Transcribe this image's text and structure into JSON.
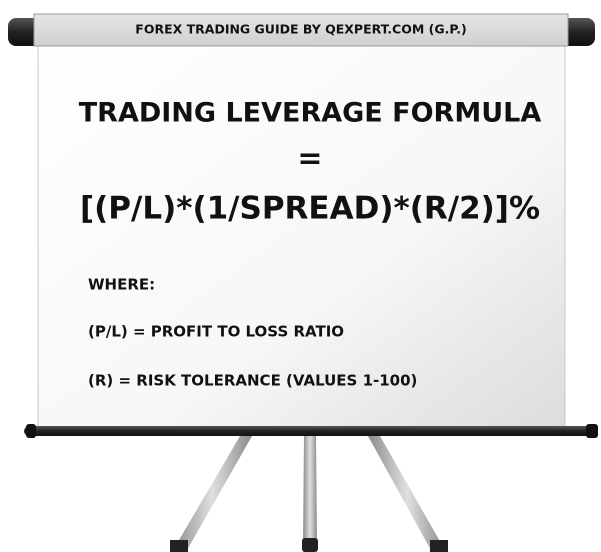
{
  "header": {
    "title": "FOREX TRADING GUIDE BY QEXPERT.COM (G.P.)"
  },
  "board": {
    "title": "TRADING LEVERAGE FORMULA",
    "equals": "=",
    "formula": "[(P/L)*(1/SPREAD)*(R/2)]%",
    "where": "WHERE:",
    "definitions": [
      "(P/L) = PROFIT TO LOSS RATIO",
      "(R) = RISK TOLERANCE (VALUES 1-100)"
    ]
  }
}
